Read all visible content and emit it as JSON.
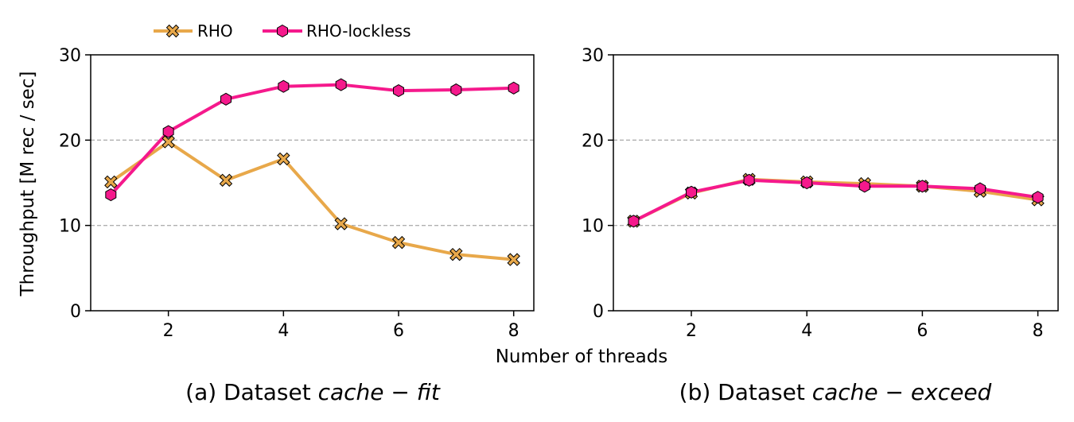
{
  "colors": {
    "RHO": "#E8A84A",
    "RHO-lockless": "#F5198C",
    "grid": "#b0b0b0",
    "marker_edge": "#000000"
  },
  "legend": {
    "items": [
      {
        "label": "RHO",
        "marker": "x-icon"
      },
      {
        "label": "RHO-lockless",
        "marker": "hexagon-icon"
      }
    ]
  },
  "ylabel": "Throughput [M rec / sec]",
  "xlabel": "Number of threads",
  "chart_data": [
    {
      "type": "line",
      "caption_prefix": "(a) Dataset ",
      "caption_math": "cache − fit",
      "x": [
        1,
        2,
        3,
        4,
        5,
        6,
        7,
        8
      ],
      "xticks": [
        2,
        4,
        6,
        8
      ],
      "yticks": [
        0,
        10,
        20,
        30
      ],
      "xlim": [
        0.65,
        8.35
      ],
      "ylim": [
        0,
        30
      ],
      "grid": "horizontal dashed",
      "series": [
        {
          "name": "RHO",
          "values": [
            15.1,
            19.8,
            15.3,
            17.8,
            10.2,
            8.0,
            6.6,
            6.0
          ]
        },
        {
          "name": "RHO-lockless",
          "values": [
            13.6,
            21.0,
            24.8,
            26.3,
            26.5,
            25.8,
            25.9,
            26.1
          ]
        }
      ]
    },
    {
      "type": "line",
      "caption_prefix": "(b) Dataset ",
      "caption_math": "cache − exceed",
      "x": [
        1,
        2,
        3,
        4,
        5,
        6,
        7,
        8
      ],
      "xticks": [
        2,
        4,
        6,
        8
      ],
      "yticks": [
        0,
        10,
        20,
        30
      ],
      "xlim": [
        0.65,
        8.35
      ],
      "ylim": [
        0,
        30
      ],
      "grid": "horizontal dashed",
      "series": [
        {
          "name": "RHO",
          "values": [
            10.5,
            13.8,
            15.4,
            15.1,
            14.9,
            14.6,
            14.0,
            13.0
          ]
        },
        {
          "name": "RHO-lockless",
          "values": [
            10.5,
            13.9,
            15.3,
            15.0,
            14.6,
            14.6,
            14.3,
            13.3
          ]
        }
      ]
    }
  ]
}
